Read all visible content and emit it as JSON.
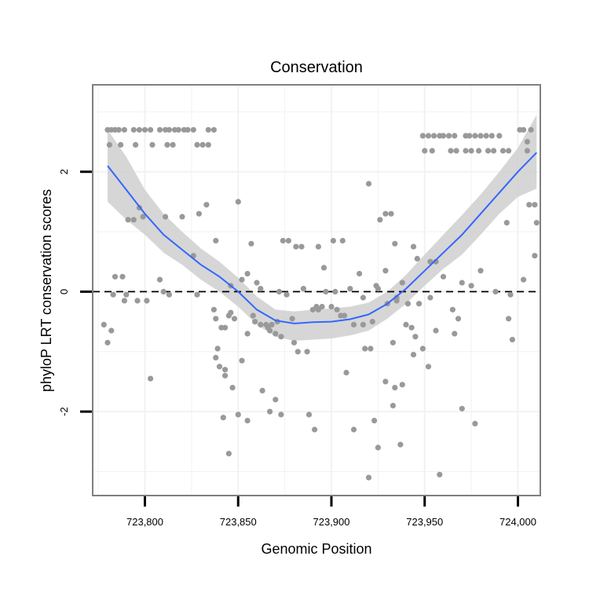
{
  "chart_data": {
    "type": "scatter",
    "title": "Conservation",
    "xlabel": "Genomic Position",
    "ylabel": "phyloP LRT conservation scores",
    "xlim": [
      723772,
      724012
    ],
    "ylim": [
      -3.4,
      3.45
    ],
    "x_ticks": [
      723800,
      723850,
      723900,
      723950,
      724000
    ],
    "x_tick_labels": [
      "723,800",
      "723,850",
      "723,900",
      "723,950",
      "724,000"
    ],
    "y_ticks": [
      -2,
      0,
      2
    ],
    "y_tick_labels": [
      "-2",
      "0",
      "2"
    ],
    "reference_line": {
      "y": 0,
      "style": "dashed"
    },
    "colors": {
      "points": "#999999",
      "smooth_line": "#3366ff",
      "ribbon": "#cccccc",
      "reference_line": "#000000",
      "panel_border": "#7f7f7f",
      "grid": "#f2f2f2"
    },
    "series": [
      {
        "name": "scores",
        "type": "scatter",
        "points": [
          [
            723780,
            2.7
          ],
          [
            723782,
            2.7
          ],
          [
            723784,
            2.7
          ],
          [
            723786,
            2.7
          ],
          [
            723789,
            2.7
          ],
          [
            723794,
            2.7
          ],
          [
            723797,
            2.7
          ],
          [
            723800,
            2.7
          ],
          [
            723803,
            2.7
          ],
          [
            723808,
            2.7
          ],
          [
            723811,
            2.7
          ],
          [
            723813,
            2.7
          ],
          [
            723816,
            2.7
          ],
          [
            723818,
            2.7
          ],
          [
            723821,
            2.7
          ],
          [
            723823,
            2.7
          ],
          [
            723826,
            2.7
          ],
          [
            723834,
            2.7
          ],
          [
            723837,
            2.7
          ],
          [
            723781,
            2.45
          ],
          [
            723787,
            2.45
          ],
          [
            723795,
            2.45
          ],
          [
            723804,
            2.45
          ],
          [
            723812,
            2.45
          ],
          [
            723815,
            2.45
          ],
          [
            723828,
            2.45
          ],
          [
            723831,
            2.45
          ],
          [
            723834,
            2.45
          ],
          [
            723949,
            2.6
          ],
          [
            723952,
            2.6
          ],
          [
            723955,
            2.6
          ],
          [
            723958,
            2.6
          ],
          [
            723960,
            2.6
          ],
          [
            723963,
            2.6
          ],
          [
            723966,
            2.6
          ],
          [
            723972,
            2.6
          ],
          [
            723974,
            2.6
          ],
          [
            723977,
            2.6
          ],
          [
            723980,
            2.6
          ],
          [
            723983,
            2.6
          ],
          [
            723986,
            2.6
          ],
          [
            723990,
            2.6
          ],
          [
            724001,
            2.7
          ],
          [
            724003,
            2.7
          ],
          [
            724007,
            2.7
          ],
          [
            723950,
            2.35
          ],
          [
            723954,
            2.35
          ],
          [
            723964,
            2.35
          ],
          [
            723967,
            2.35
          ],
          [
            723972,
            2.35
          ],
          [
            723975,
            2.35
          ],
          [
            723979,
            2.35
          ],
          [
            723984,
            2.35
          ],
          [
            723987,
            2.35
          ],
          [
            723992,
            2.35
          ],
          [
            723995,
            2.35
          ],
          [
            724005,
            2.35
          ],
          [
            723791,
            1.2
          ],
          [
            723794,
            1.2
          ],
          [
            723797,
            1.4
          ],
          [
            723799,
            1.25
          ],
          [
            723811,
            1.25
          ],
          [
            723820,
            1.25
          ],
          [
            723829,
            1.3
          ],
          [
            723833,
            1.45
          ],
          [
            723850,
            1.5
          ],
          [
            723920,
            1.8
          ],
          [
            723926,
            1.2
          ],
          [
            723929,
            1.3
          ],
          [
            723932,
            1.3
          ],
          [
            724006,
            1.45
          ],
          [
            724009,
            1.45
          ],
          [
            724010,
            1.15
          ],
          [
            723994,
            1.15
          ],
          [
            724005,
            2.5
          ],
          [
            723784,
            0.25
          ],
          [
            723788,
            0.25
          ],
          [
            723808,
            0.2
          ],
          [
            723826,
            0.6
          ],
          [
            723838,
            0.85
          ],
          [
            723857,
            0.8
          ],
          [
            723874,
            0.85
          ],
          [
            723877,
            0.85
          ],
          [
            723881,
            0.75
          ],
          [
            723884,
            0.75
          ],
          [
            723893,
            0.75
          ],
          [
            723896,
            0.4
          ],
          [
            723901,
            0.85
          ],
          [
            723906,
            0.85
          ],
          [
            723915,
            0.3
          ],
          [
            723924,
            0.1
          ],
          [
            723929,
            0.35
          ],
          [
            723934,
            0.8
          ],
          [
            723938,
            0.15
          ],
          [
            723944,
            0.75
          ],
          [
            723946,
            0.55
          ],
          [
            723953,
            0.5
          ],
          [
            723956,
            0.5
          ],
          [
            723960,
            0.25
          ],
          [
            723970,
            0.15
          ],
          [
            723975,
            0.1
          ],
          [
            723980,
            0.35
          ],
          [
            724009,
            0.6
          ],
          [
            724003,
            0.2
          ],
          [
            723783,
            -0.05
          ],
          [
            723789,
            -0.15
          ],
          [
            723796,
            -0.15
          ],
          [
            723801,
            -0.15
          ],
          [
            723810,
            0.0
          ],
          [
            723813,
            -0.05
          ],
          [
            723828,
            -0.05
          ],
          [
            723846,
            0.1
          ],
          [
            723852,
            0.2
          ],
          [
            723855,
            0.3
          ],
          [
            723860,
            0.15
          ],
          [
            723862,
            0.05
          ],
          [
            723872,
            0.0
          ],
          [
            723876,
            -0.05
          ],
          [
            723885,
            0.05
          ],
          [
            723897,
            0.0
          ],
          [
            723902,
            0.0
          ],
          [
            723910,
            0.05
          ],
          [
            723917,
            -0.1
          ],
          [
            723925,
            0.05
          ],
          [
            723935,
            -0.1
          ],
          [
            723941,
            -0.2
          ],
          [
            723947,
            -0.2
          ],
          [
            723953,
            -0.1
          ],
          [
            723996,
            -0.05
          ],
          [
            723988,
            0.0
          ],
          [
            723778,
            -0.55
          ],
          [
            723780,
            -0.85
          ],
          [
            723782,
            -0.65
          ],
          [
            723790,
            -0.05
          ],
          [
            723837,
            -0.3
          ],
          [
            723841,
            -0.6
          ],
          [
            723843,
            -0.6
          ],
          [
            723845,
            -0.4
          ],
          [
            723848,
            -0.45
          ],
          [
            723858,
            -0.4
          ],
          [
            723859,
            -0.5
          ],
          [
            723862,
            -0.55
          ],
          [
            723866,
            -0.6
          ],
          [
            723868,
            -0.55
          ],
          [
            723870,
            -0.7
          ],
          [
            723873,
            -0.75
          ],
          [
            723880,
            -0.85
          ],
          [
            723882,
            -1.0
          ],
          [
            723887,
            -1.0
          ],
          [
            723893,
            -0.3
          ],
          [
            723895,
            -0.25
          ],
          [
            723903,
            -0.3
          ],
          [
            723907,
            -0.4
          ],
          [
            723912,
            -0.55
          ],
          [
            723917,
            -0.55
          ],
          [
            723922,
            -0.5
          ],
          [
            723930,
            -0.2
          ],
          [
            723935,
            -0.15
          ],
          [
            723940,
            -0.55
          ],
          [
            723943,
            -0.6
          ],
          [
            723945,
            -0.75
          ],
          [
            723949,
            -0.95
          ],
          [
            723956,
            -0.65
          ],
          [
            723965,
            -0.3
          ],
          [
            723968,
            -0.45
          ],
          [
            723995,
            -0.45
          ],
          [
            723997,
            -0.8
          ],
          [
            723803,
            -1.45
          ],
          [
            723838,
            -1.1
          ],
          [
            723840,
            -1.25
          ],
          [
            723843,
            -1.3
          ],
          [
            723847,
            -1.6
          ],
          [
            723852,
            -1.15
          ],
          [
            723855,
            -0.7
          ],
          [
            723865,
            -0.55
          ],
          [
            723867,
            -0.65
          ],
          [
            723871,
            -0.5
          ],
          [
            723870,
            -1.8
          ],
          [
            723873,
            -2.05
          ],
          [
            723879,
            -0.45
          ],
          [
            723890,
            -0.3
          ],
          [
            723892,
            -0.25
          ],
          [
            723900,
            -0.25
          ],
          [
            723905,
            -0.4
          ],
          [
            723908,
            -1.35
          ],
          [
            723918,
            -0.95
          ],
          [
            723921,
            -0.95
          ],
          [
            723933,
            -0.85
          ],
          [
            723944,
            -1.05
          ],
          [
            723952,
            -1.25
          ],
          [
            723966,
            -0.7
          ],
          [
            723838,
            -0.45
          ],
          [
            723839,
            -0.95
          ],
          [
            723843,
            -1.4
          ],
          [
            723846,
            -0.35
          ],
          [
            723863,
            -1.65
          ],
          [
            723867,
            -2.0
          ],
          [
            723855,
            -2.15
          ],
          [
            723842,
            -2.1
          ],
          [
            723850,
            -2.05
          ],
          [
            723888,
            -2.05
          ],
          [
            723891,
            -2.3
          ],
          [
            723912,
            -2.3
          ],
          [
            723923,
            -2.15
          ],
          [
            723929,
            -1.5
          ],
          [
            723934,
            -1.6
          ],
          [
            723938,
            -1.55
          ],
          [
            723925,
            -2.6
          ],
          [
            723920,
            -3.1
          ],
          [
            723845,
            -2.7
          ],
          [
            723958,
            -3.05
          ],
          [
            723977,
            -2.2
          ],
          [
            723970,
            -1.95
          ],
          [
            723937,
            -2.55
          ],
          [
            723933,
            -1.9
          ]
        ]
      },
      {
        "name": "loess",
        "type": "line",
        "points": [
          [
            723780,
            2.1
          ],
          [
            723790,
            1.7
          ],
          [
            723800,
            1.3
          ],
          [
            723810,
            0.95
          ],
          [
            723820,
            0.7
          ],
          [
            723830,
            0.45
          ],
          [
            723840,
            0.25
          ],
          [
            723850,
            0.0
          ],
          [
            723860,
            -0.3
          ],
          [
            723870,
            -0.48
          ],
          [
            723880,
            -0.53
          ],
          [
            723890,
            -0.51
          ],
          [
            723900,
            -0.5
          ],
          [
            723910,
            -0.46
          ],
          [
            723920,
            -0.38
          ],
          [
            723930,
            -0.2
          ],
          [
            723940,
            0.05
          ],
          [
            723950,
            0.35
          ],
          [
            723960,
            0.65
          ],
          [
            723970,
            0.95
          ],
          [
            723980,
            1.3
          ],
          [
            723990,
            1.65
          ],
          [
            724000,
            2.0
          ],
          [
            724010,
            2.32
          ]
        ]
      },
      {
        "name": "confidence band",
        "type": "ribbon",
        "upper": [
          [
            723780,
            2.7
          ],
          [
            723790,
            2.25
          ],
          [
            723800,
            1.7
          ],
          [
            723810,
            1.3
          ],
          [
            723820,
            1.0
          ],
          [
            723830,
            0.72
          ],
          [
            723840,
            0.5
          ],
          [
            723850,
            0.23
          ],
          [
            723860,
            -0.08
          ],
          [
            723870,
            -0.3
          ],
          [
            723880,
            -0.33
          ],
          [
            723890,
            -0.3
          ],
          [
            723900,
            -0.28
          ],
          [
            723910,
            -0.25
          ],
          [
            723920,
            -0.18
          ],
          [
            723930,
            0.0
          ],
          [
            723940,
            0.28
          ],
          [
            723950,
            0.62
          ],
          [
            723960,
            0.95
          ],
          [
            723970,
            1.28
          ],
          [
            723980,
            1.62
          ],
          [
            723990,
            2.0
          ],
          [
            724000,
            2.4
          ],
          [
            724010,
            2.95
          ]
        ],
        "lower": [
          [
            723780,
            1.5
          ],
          [
            723790,
            1.2
          ],
          [
            723800,
            0.95
          ],
          [
            723810,
            0.65
          ],
          [
            723820,
            0.45
          ],
          [
            723830,
            0.2
          ],
          [
            723840,
            0.0
          ],
          [
            723850,
            -0.25
          ],
          [
            723860,
            -0.55
          ],
          [
            723870,
            -0.75
          ],
          [
            723880,
            -0.82
          ],
          [
            723890,
            -0.8
          ],
          [
            723900,
            -0.78
          ],
          [
            723910,
            -0.73
          ],
          [
            723920,
            -0.65
          ],
          [
            723930,
            -0.45
          ],
          [
            723940,
            -0.2
          ],
          [
            723950,
            0.1
          ],
          [
            723960,
            0.38
          ],
          [
            723970,
            0.62
          ],
          [
            723980,
            0.95
          ],
          [
            723990,
            1.3
          ],
          [
            724000,
            1.58
          ],
          [
            724010,
            1.72
          ]
        ]
      }
    ]
  }
}
